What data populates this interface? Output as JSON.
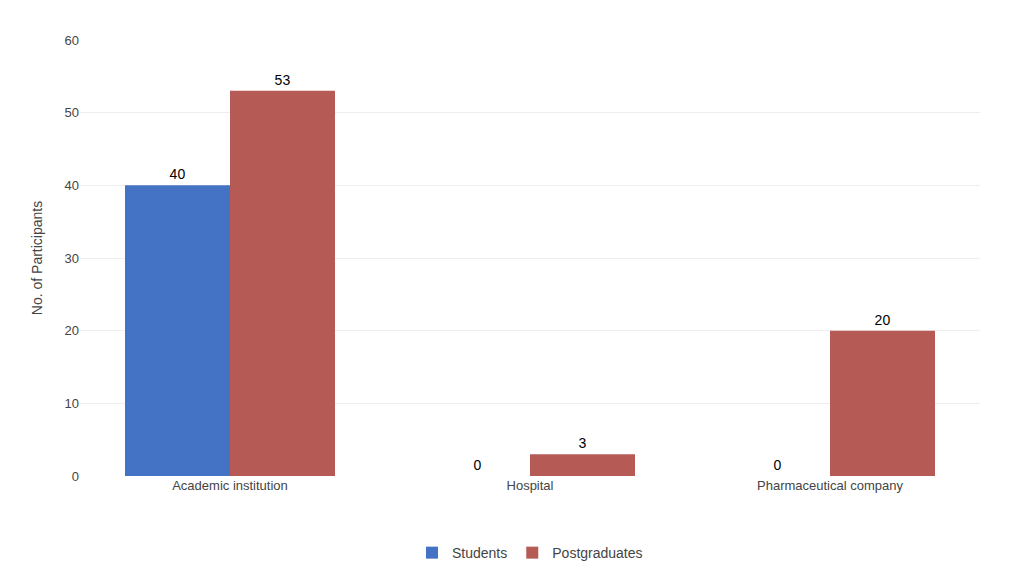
{
  "chart_data": {
    "type": "bar",
    "categories": [
      "Academic institution",
      "Hospital",
      "Pharmaceutical company"
    ],
    "series": [
      {
        "name": "Students",
        "color": "#4472C4",
        "values": [
          40,
          0,
          0
        ]
      },
      {
        "name": "Postgraduates",
        "color": "#B55A55",
        "values": [
          53,
          3,
          20
        ]
      }
    ],
    "ylabel": "No. of Participants",
    "ylim": [
      0,
      60
    ],
    "yticks": [
      0,
      10,
      20,
      30,
      40,
      50,
      60
    ],
    "grid": true,
    "legend": "bottom",
    "data_labels": true
  }
}
